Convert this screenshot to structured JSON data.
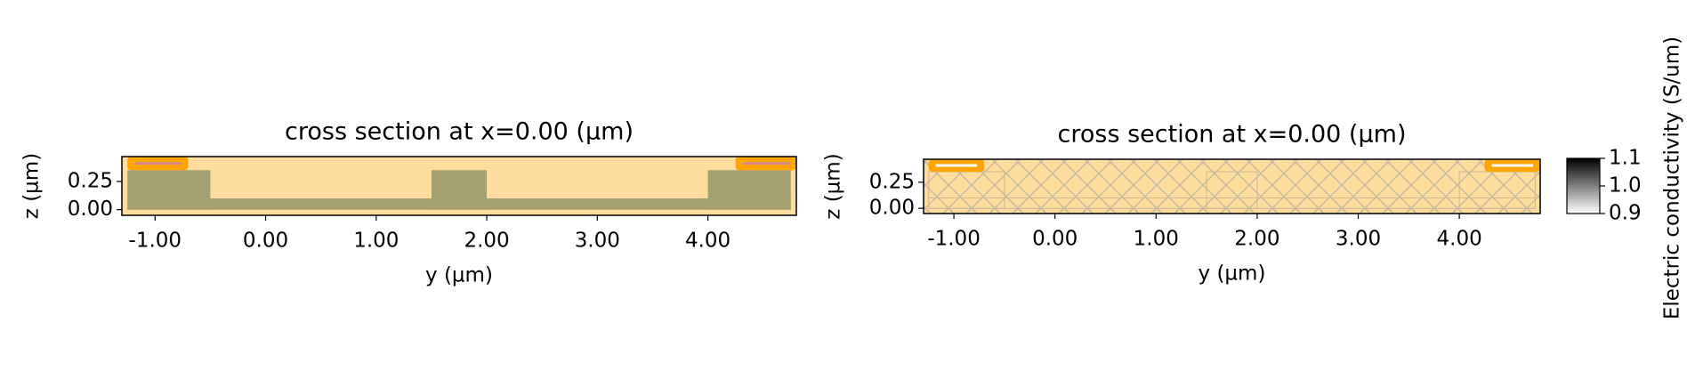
{
  "chart_data": [
    {
      "type": "structure",
      "title": "cross section at x=0.00 (µm)",
      "xlabel": "y (µm)",
      "ylabel": "z (µm)",
      "xlim": [
        -1.3,
        4.8
      ],
      "ylim": [
        -0.05,
        0.47
      ],
      "xticks": [
        {
          "value": -1,
          "label": "-1.00"
        },
        {
          "value": 0,
          "label": "0.00"
        },
        {
          "value": 1,
          "label": "1.00"
        },
        {
          "value": 2,
          "label": "2.00"
        },
        {
          "value": 3,
          "label": "3.00"
        },
        {
          "value": 4,
          "label": "4.00"
        }
      ],
      "yticks": [
        {
          "value": 0,
          "label": "0.00"
        },
        {
          "value": 0.25,
          "label": "0.25"
        }
      ],
      "background_color": "#fedd9e",
      "structures": [
        {
          "x": [
            -1.25,
            4.75
          ],
          "z": [
            0,
            0.1
          ],
          "color": "#a5a071"
        },
        {
          "x": [
            -1.25,
            -0.5
          ],
          "z": [
            0,
            0.35
          ],
          "color": "#a5a071"
        },
        {
          "x": [
            1.5,
            2.0
          ],
          "z": [
            0,
            0.35
          ],
          "color": "#a5a071"
        },
        {
          "x": [
            4.0,
            4.75
          ],
          "z": [
            0,
            0.35
          ],
          "color": "#a5a071"
        }
      ],
      "sources": [
        {
          "x": [
            -1.25,
            -0.7
          ],
          "z": [
            0.35,
            0.47
          ],
          "color": "#ffa500",
          "line_color": "#d8888a"
        },
        {
          "x": [
            4.25,
            4.8
          ],
          "z": [
            0.35,
            0.47
          ],
          "color": "#ffa500",
          "line_color": "#d8888a"
        }
      ]
    },
    {
      "type": "conductivity",
      "title": "cross section at x=0.00 (µm)",
      "xlabel": "y (µm)",
      "ylabel": "z (µm)",
      "xlim": [
        -1.3,
        4.8
      ],
      "ylim": [
        -0.05,
        0.47
      ],
      "xticks": [
        {
          "value": -1,
          "label": "-1.00"
        },
        {
          "value": 0,
          "label": "0.00"
        },
        {
          "value": 1,
          "label": "1.00"
        },
        {
          "value": 2,
          "label": "2.00"
        },
        {
          "value": 3,
          "label": "3.00"
        },
        {
          "value": 4,
          "label": "4.00"
        }
      ],
      "yticks": [
        {
          "value": 0,
          "label": "0.00"
        },
        {
          "value": 0.25,
          "label": "0.25"
        }
      ],
      "background_color": "#fedd9e",
      "structures": [
        {
          "x": [
            -1.25,
            4.75
          ],
          "z": [
            0,
            0.1
          ],
          "color": "#c9b78f"
        },
        {
          "x": [
            -1.25,
            -0.5
          ],
          "z": [
            0,
            0.35
          ],
          "color": "#c9b78f"
        },
        {
          "x": [
            1.5,
            2.0
          ],
          "z": [
            0,
            0.35
          ],
          "color": "#c9b78f"
        },
        {
          "x": [
            4.0,
            4.75
          ],
          "z": [
            0,
            0.35
          ],
          "color": "#c9b78f"
        }
      ],
      "sources": [
        {
          "x": [
            -1.25,
            -0.7
          ],
          "z": [
            0.35,
            0.47
          ],
          "color": "#ffa500",
          "line_color": "#ffffff"
        },
        {
          "x": [
            4.25,
            4.8
          ],
          "z": [
            0.35,
            0.47
          ],
          "color": "#ffa500",
          "line_color": "#ffffff"
        }
      ],
      "colorbar": {
        "label": "Electric conductivity (S/um)",
        "clim": [
          0.9,
          1.1
        ],
        "ticks": [
          {
            "value": 0.9,
            "label": "0.9"
          },
          {
            "value": 1.0,
            "label": "1.0"
          },
          {
            "value": 1.1,
            "label": "1.1"
          }
        ]
      }
    }
  ]
}
